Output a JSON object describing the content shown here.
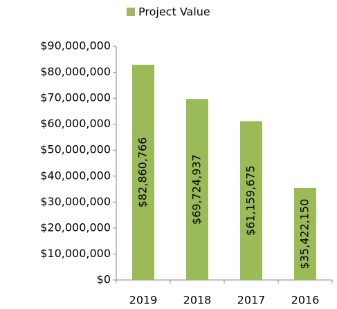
{
  "chart_data": {
    "type": "bar",
    "legend": "Project Value",
    "legend_position": "top",
    "color": "#9bbb59",
    "categories": [
      "2019",
      "2018",
      "2017",
      "2016"
    ],
    "values": [
      82860766,
      69724937,
      61159675,
      35422150
    ],
    "value_labels": [
      "$82,860,766",
      "$69,724,937",
      "$61,159,675",
      "$35,422,150"
    ],
    "ylim": [
      0,
      90000000
    ],
    "yticks": [
      {
        "value": 0,
        "label": "$0"
      },
      {
        "value": 10000000,
        "label": "$10,000,000"
      },
      {
        "value": 20000000,
        "label": "$20,000,000"
      },
      {
        "value": 30000000,
        "label": "$30,000,000"
      },
      {
        "value": 40000000,
        "label": "$40,000,000"
      },
      {
        "value": 50000000,
        "label": "$50,000,000"
      },
      {
        "value": 60000000,
        "label": "$60,000,000"
      },
      {
        "value": 70000000,
        "label": "$70,000,000"
      },
      {
        "value": 80000000,
        "label": "$80,000,000"
      },
      {
        "value": 90000000,
        "label": "$90,000,000"
      }
    ],
    "grid": false
  }
}
